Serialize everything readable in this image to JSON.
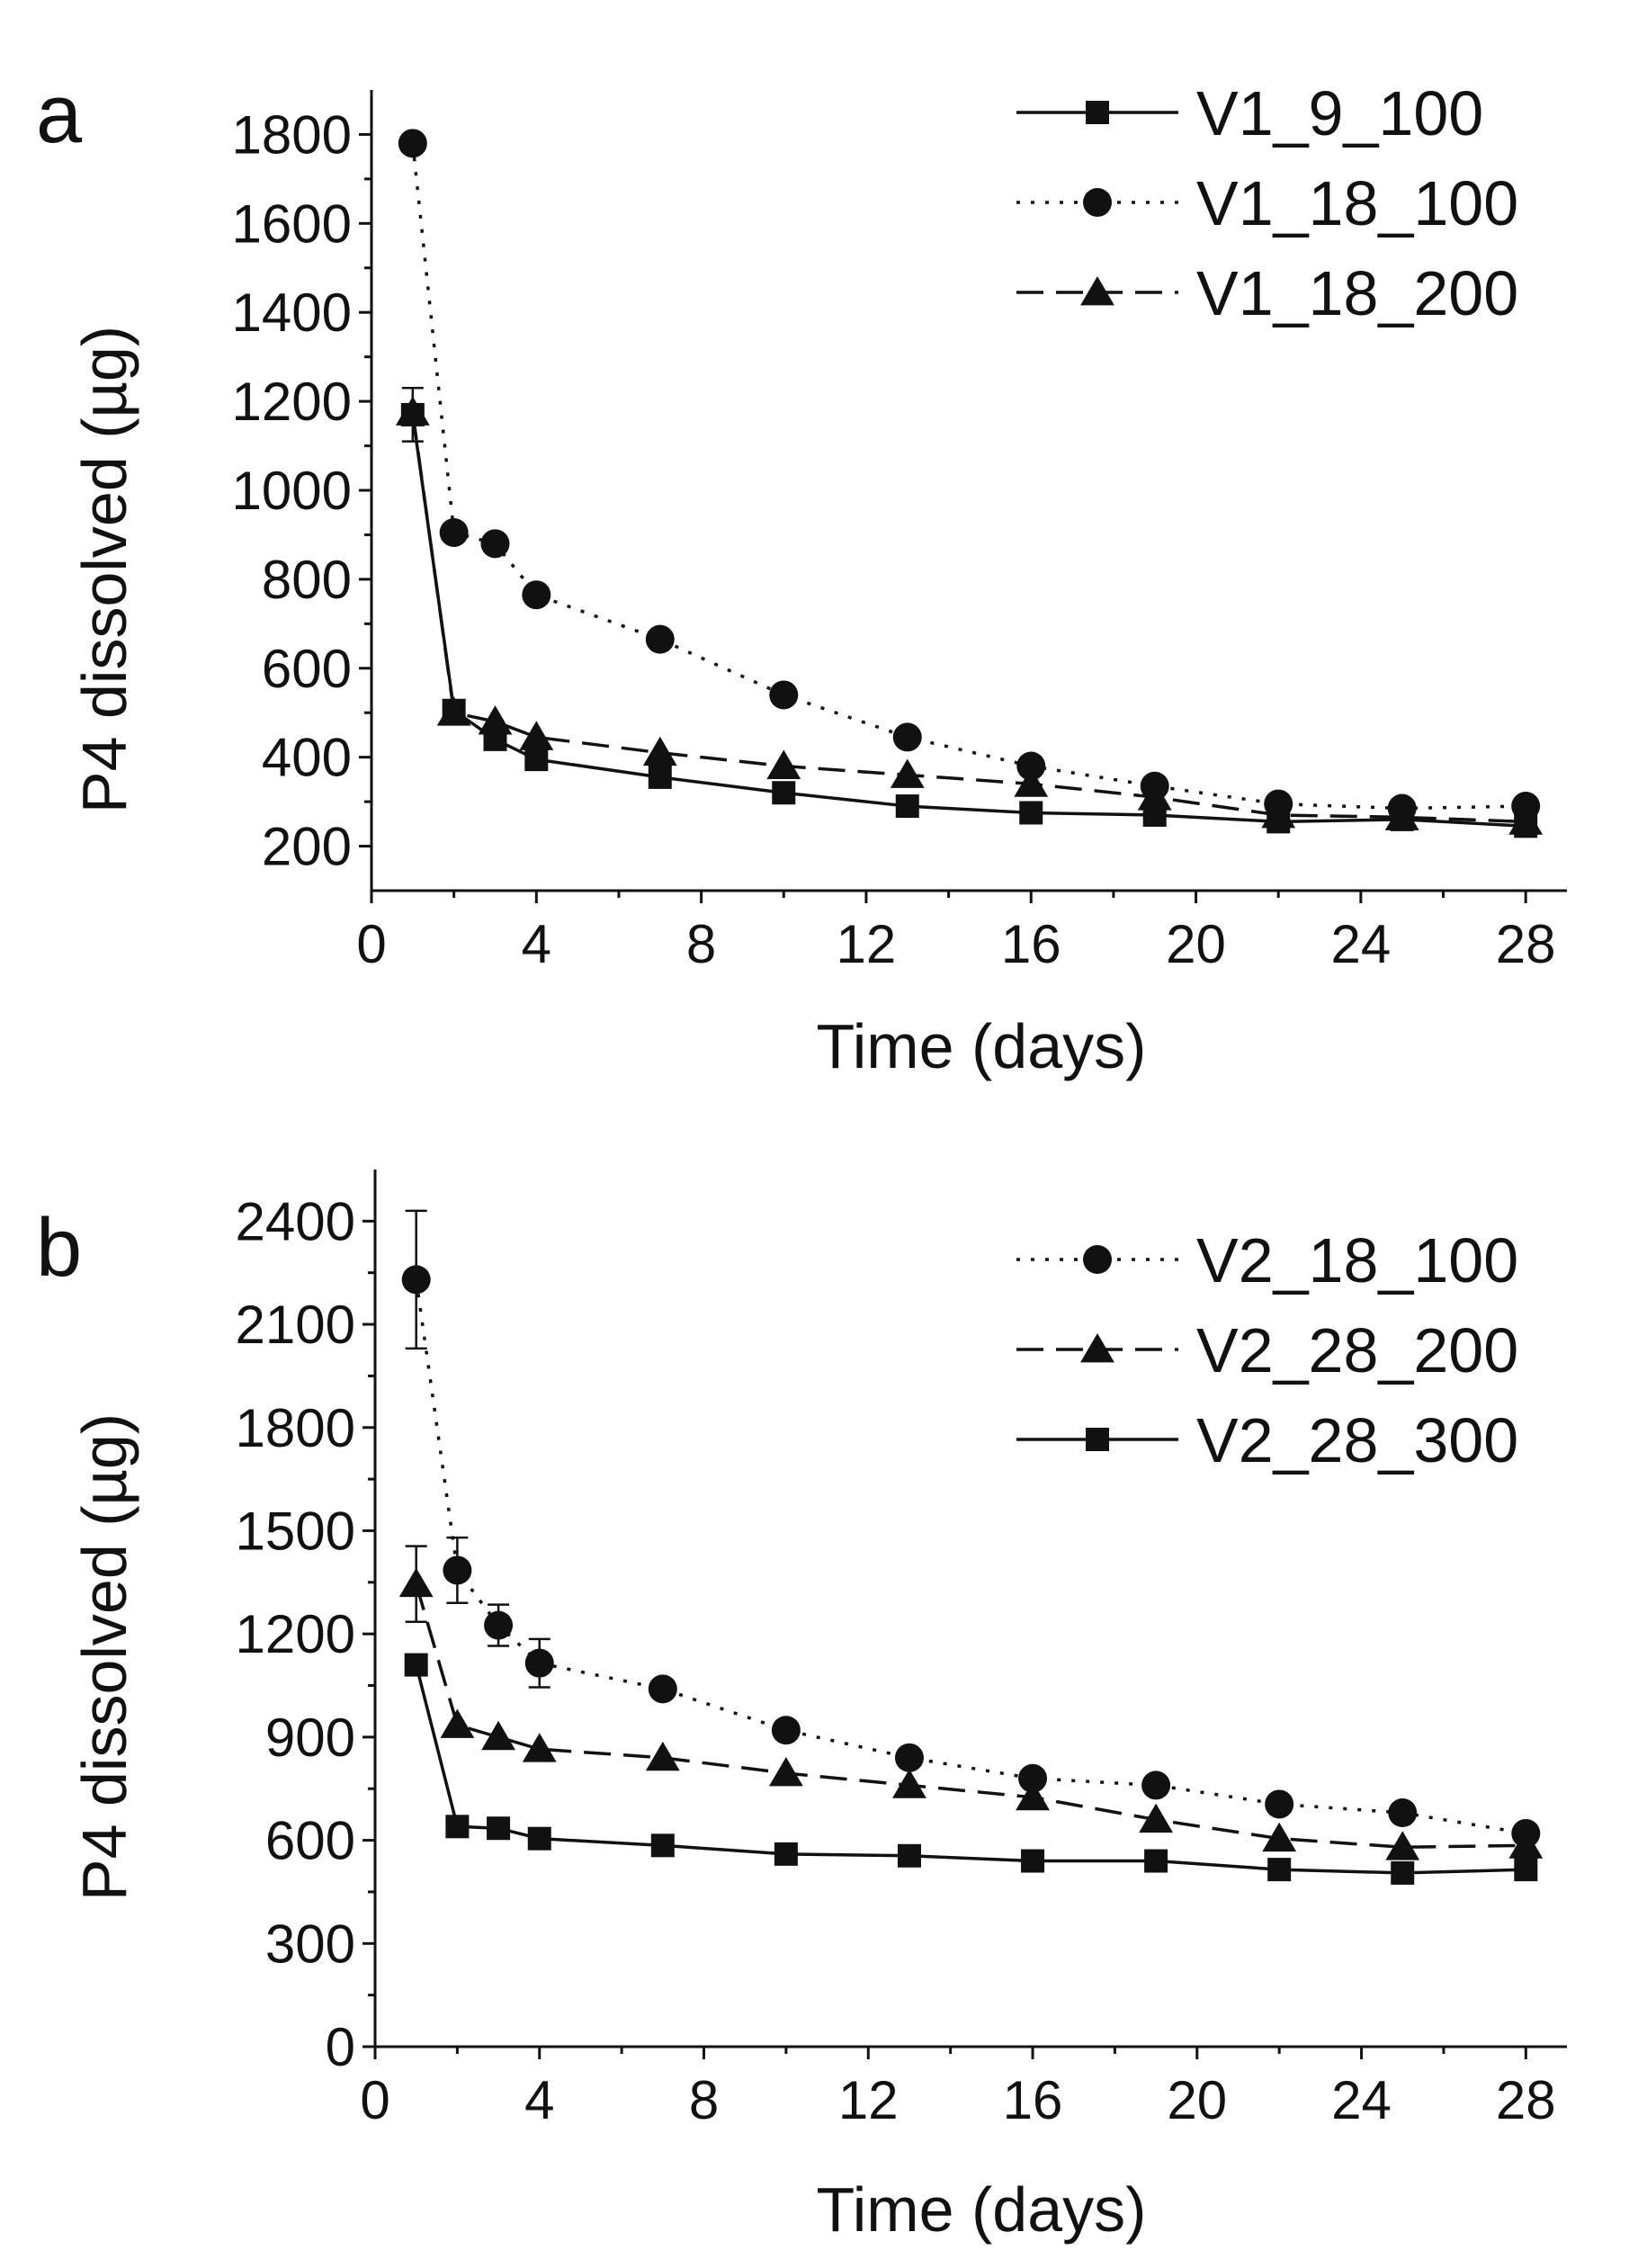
{
  "chart_data": [
    {
      "panel_label": "a",
      "type": "line",
      "xlabel": "Time (days)",
      "ylabel": "P4 dissolved (µg)",
      "xlim": [
        0,
        29
      ],
      "ylim": [
        100,
        1900
      ],
      "xticks": [
        0,
        4,
        8,
        12,
        16,
        20,
        24,
        28
      ],
      "yticks": [
        200,
        400,
        600,
        800,
        1000,
        1200,
        1400,
        1600,
        1800
      ],
      "x": [
        1,
        2,
        3,
        4,
        7,
        10,
        13,
        16,
        19,
        22,
        25,
        28
      ],
      "legend_position": "top-right",
      "series": [
        {
          "name": "V1_9_100",
          "line_style": "solid",
          "marker": "square",
          "values": [
            1170,
            505,
            440,
            395,
            355,
            320,
            290,
            275,
            270,
            255,
            260,
            245
          ],
          "errors": [
            60,
            0,
            0,
            0,
            0,
            0,
            0,
            0,
            0,
            0,
            0,
            0
          ]
        },
        {
          "name": "V1_18_100",
          "line_style": "dotted",
          "marker": "circle",
          "values": [
            1780,
            905,
            880,
            765,
            665,
            540,
            445,
            380,
            335,
            295,
            285,
            290
          ],
          "errors": [
            0,
            0,
            0,
            0,
            0,
            0,
            0,
            0,
            0,
            0,
            0,
            0
          ]
        },
        {
          "name": "V1_18_200",
          "line_style": "dashed",
          "marker": "triangle",
          "values": [
            1175,
            500,
            480,
            445,
            410,
            380,
            360,
            340,
            310,
            270,
            265,
            255
          ],
          "errors": [
            0,
            0,
            0,
            0,
            0,
            0,
            0,
            0,
            0,
            0,
            0,
            0
          ]
        }
      ]
    },
    {
      "panel_label": "b",
      "type": "line",
      "xlabel": "Time (days)",
      "ylabel": "P4 dissolved (µg)",
      "xlim": [
        0,
        29
      ],
      "ylim": [
        0,
        2550
      ],
      "xticks": [
        0,
        4,
        8,
        12,
        16,
        20,
        24,
        28
      ],
      "yticks": [
        0,
        300,
        600,
        900,
        1200,
        1500,
        1800,
        2100,
        2400
      ],
      "x": [
        1,
        2,
        3,
        4,
        7,
        10,
        13,
        16,
        19,
        22,
        25,
        28
      ],
      "legend_position": "top-right",
      "series": [
        {
          "name": "V2_18_100",
          "line_style": "dotted",
          "marker": "circle",
          "values": [
            2230,
            1385,
            1225,
            1115,
            1040,
            920,
            840,
            780,
            760,
            705,
            680,
            620
          ],
          "errors": [
            200,
            95,
            60,
            70,
            0,
            0,
            0,
            0,
            0,
            0,
            0,
            0
          ]
        },
        {
          "name": "V2_28_200",
          "line_style": "dashed",
          "marker": "triangle",
          "values": [
            1345,
            935,
            900,
            865,
            840,
            795,
            760,
            725,
            660,
            605,
            580,
            585
          ],
          "errors": [
            110,
            0,
            0,
            0,
            0,
            0,
            0,
            0,
            0,
            0,
            0,
            0
          ]
        },
        {
          "name": "V2_28_300",
          "line_style": "solid",
          "marker": "square",
          "values": [
            1110,
            640,
            635,
            605,
            585,
            560,
            555,
            540,
            540,
            515,
            505,
            515
          ],
          "errors": [
            0,
            0,
            0,
            0,
            0,
            0,
            0,
            0,
            0,
            0,
            0,
            0
          ]
        }
      ]
    }
  ]
}
